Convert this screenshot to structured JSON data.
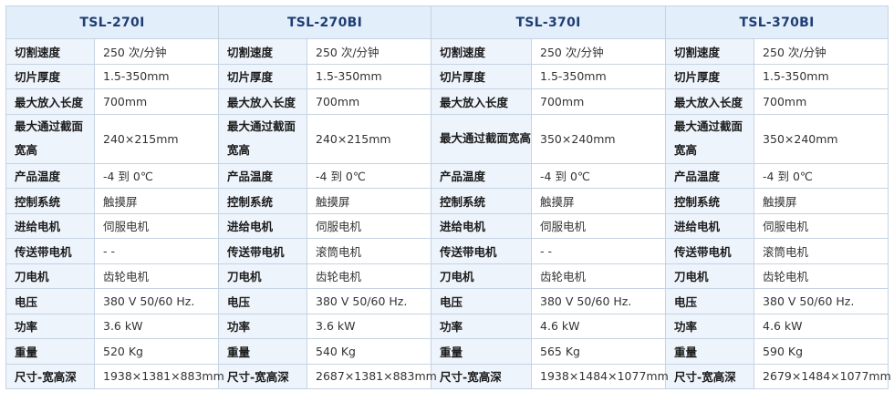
{
  "models": [
    "TSL-270I",
    "TSL-270BI",
    "TSL-370I",
    "TSL-370BI"
  ],
  "rows": [
    {
      "labels": [
        "切割速度",
        "切割速度",
        "切割速度",
        "切割速度"
      ],
      "values": [
        "250 次/分钟",
        "250 次/分钟",
        "250 次/分钟",
        "250 次/分钟"
      ]
    },
    {
      "labels": [
        "切片厚度",
        "切片厚度",
        "切片厚度",
        "切片厚度"
      ],
      "values": [
        "1.5-350mm",
        "1.5-350mm",
        "1.5-350mm",
        "1.5-350mm"
      ]
    },
    {
      "labels": [
        "最大放入长度",
        "最大放入长度",
        "最大放入长度",
        "最大放入长度"
      ],
      "values": [
        "700mm",
        "700mm",
        "700mm",
        "700mm"
      ]
    },
    {
      "labels": [
        "最大通过截面宽高",
        "最大通过截面宽高",
        "最大通过截面宽高",
        "最大通过截面宽高"
      ],
      "values": [
        "240×215mm",
        "240×215mm",
        "350×240mm",
        "350×240mm"
      ]
    },
    {
      "labels": [
        "产品温度",
        "产品温度",
        "产品温度",
        "产品温度"
      ],
      "values": [
        "-4 到 0℃",
        "-4 到 0℃",
        "-4 到 0℃",
        "-4 到 0℃"
      ]
    },
    {
      "labels": [
        "控制系统",
        "控制系统",
        "控制系统",
        "控制系统"
      ],
      "values": [
        "触摸屏",
        "触摸屏",
        "触摸屏",
        "触摸屏"
      ]
    },
    {
      "labels": [
        "进给电机",
        "进给电机",
        "进给电机",
        "进给电机"
      ],
      "values": [
        "伺服电机",
        "伺服电机",
        "伺服电机",
        "伺服电机"
      ]
    },
    {
      "labels": [
        "传送带电机",
        "传送带电机",
        "传送带电机",
        "传送带电机"
      ],
      "values": [
        "- -",
        "滚筒电机",
        "- -",
        "滚筒电机"
      ]
    },
    {
      "labels": [
        "刀电机",
        "刀电机",
        "刀电机",
        "刀电机"
      ],
      "values": [
        "齿轮电机",
        "齿轮电机",
        "齿轮电机",
        "齿轮电机"
      ]
    },
    {
      "labels": [
        "电压",
        "电压",
        "电压",
        "电压"
      ],
      "values": [
        "380 V 50/60 Hz.",
        "380 V 50/60 Hz.",
        "380 V 50/60 Hz.",
        "380 V 50/60 Hz."
      ]
    },
    {
      "labels": [
        "功率",
        "功率",
        "功率",
        "功率"
      ],
      "values": [
        "3.6 kW",
        "3.6 kW",
        "4.6 kW",
        "4.6 kW"
      ]
    },
    {
      "labels": [
        "重量",
        "重量",
        "重量",
        "重量"
      ],
      "values": [
        "520 Kg",
        "540 Kg",
        "565 Kg",
        "590 Kg"
      ]
    },
    {
      "labels": [
        "尺寸-宽高深",
        "尺寸-宽高深",
        "尺寸-宽高深",
        "尺寸-宽高深"
      ],
      "values": [
        "1938×1381×883mm",
        "2687×1381×883mm",
        "1938×1484×1077mm",
        "2679×1484×1077mm"
      ]
    }
  ]
}
